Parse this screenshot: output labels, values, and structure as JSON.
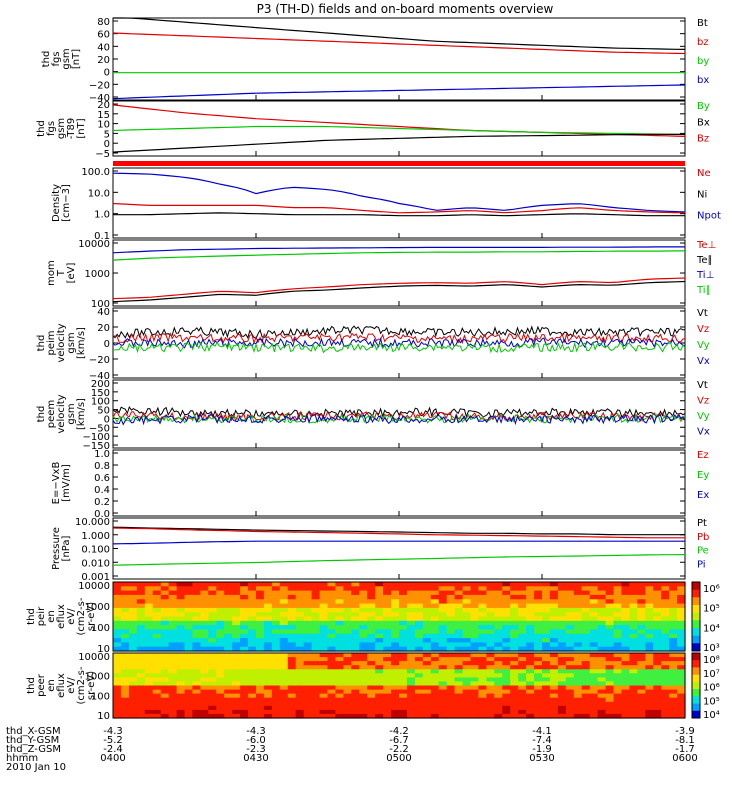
{
  "title": "P3 (TH-D) fields and on-board moments overview",
  "colors": {
    "black": "#000000",
    "red": "#e00000",
    "green": "#00c800",
    "blue": "#0000c8",
    "orange": "#ff0000"
  },
  "chart_data": [
    {
      "type": "line",
      "ylabel": [
        "thd",
        "fgs",
        "gsm",
        "[nT]"
      ],
      "yticks": [
        "80",
        "60",
        "40",
        "20",
        "0",
        "−20",
        "−40"
      ],
      "ylim": [
        -40,
        80
      ],
      "legend": [
        {
          "name": "Bt",
          "color": "#000000"
        },
        {
          "name": "bz",
          "color": "#e00000"
        },
        {
          "name": "by",
          "color": "#00c800"
        },
        {
          "name": "bx",
          "color": "#0000c8"
        }
      ],
      "series": [
        {
          "name": "Bt",
          "color": "#000000",
          "values": [
            82,
            78,
            74,
            70,
            66,
            62,
            58,
            54,
            50,
            46,
            44,
            42,
            40,
            38,
            36,
            35,
            34
          ]
        },
        {
          "name": "bz",
          "color": "#e00000",
          "values": [
            58,
            56,
            54,
            52,
            50,
            48,
            46,
            44,
            42,
            40,
            38,
            36,
            34,
            32,
            30,
            29,
            28
          ]
        },
        {
          "name": "by",
          "color": "#00c800",
          "values": [
            0,
            0,
            0,
            0,
            0,
            0,
            0,
            0,
            0,
            0,
            0,
            0,
            0,
            0,
            0,
            0,
            0
          ]
        },
        {
          "name": "bx",
          "color": "#0000c8",
          "values": [
            -38,
            -36,
            -34,
            -32,
            -30,
            -29,
            -28,
            -27,
            -26,
            -25,
            -24,
            -23,
            -22,
            -21,
            -20,
            -19,
            -18
          ]
        }
      ]
    },
    {
      "type": "line",
      "ylabel": [
        "thd",
        "fgs",
        "gsm",
        "-T89",
        "[nT]"
      ],
      "yticks": [
        "20",
        "15",
        "10",
        "5",
        "0",
        "−5"
      ],
      "ylim": [
        -8,
        20
      ],
      "legend": [
        {
          "name": "By",
          "color": "#00c800"
        },
        {
          "name": "Bx",
          "color": "#000000"
        },
        {
          "name": "Bz",
          "color": "#e00000"
        }
      ],
      "series": [
        {
          "name": "Bz",
          "color": "#e00000",
          "values": [
            18,
            16,
            14,
            12.5,
            11,
            10,
            9,
            8,
            7,
            6,
            5,
            4.5,
            4,
            3.5,
            3,
            2.5,
            2
          ]
        },
        {
          "name": "By",
          "color": "#00c800",
          "values": [
            5,
            5.5,
            6,
            6.5,
            7,
            7,
            7,
            6.5,
            6,
            5.5,
            5,
            4.5,
            4,
            3.8,
            3.5,
            3.2,
            3
          ]
        },
        {
          "name": "Bx",
          "color": "#000000",
          "values": [
            -6,
            -5,
            -4,
            -3,
            -2,
            -1,
            0,
            0.5,
            1,
            1.5,
            2,
            2.2,
            2.4,
            2.6,
            2.8,
            3,
            3
          ]
        }
      ]
    },
    {
      "type": "line",
      "log": true,
      "ylabel": [
        "Density",
        "[cm−3]"
      ],
      "yticks": [
        "100.0",
        "10.0",
        "1.0",
        "0.1"
      ],
      "ylim": [
        0.1,
        100
      ],
      "legend": [
        {
          "name": "Ne",
          "color": "#e00000"
        },
        {
          "name": "Ni",
          "color": "#000000"
        },
        {
          "name": "Npot",
          "color": "#0000c8"
        }
      ],
      "series": [
        {
          "name": "Npot",
          "color": "#0000c8",
          "values": [
            60,
            55,
            40,
            20,
            8,
            15,
            12,
            6,
            3,
            1.5,
            2,
            1.5,
            2.5,
            3,
            2,
            1.5,
            1.3
          ]
        },
        {
          "name": "Ne",
          "color": "#e00000",
          "values": [
            3,
            2.5,
            2.5,
            2.5,
            2.5,
            2,
            2,
            1.5,
            1.2,
            1.3,
            1.5,
            1.2,
            1.5,
            2,
            1.5,
            1.3,
            1.2
          ]
        },
        {
          "name": "Ni",
          "color": "#000000",
          "values": [
            1,
            1,
            1.1,
            1.2,
            1.1,
            1,
            1,
            1,
            0.9,
            0.9,
            1,
            0.9,
            1,
            1.1,
            1,
            0.9,
            0.9
          ]
        }
      ]
    },
    {
      "type": "line",
      "log": true,
      "ylabel": [
        "mom",
        "T",
        "[eV]"
      ],
      "yticks": [
        "10000",
        "1000",
        "100"
      ],
      "ylim": [
        20,
        10000
      ],
      "legend": [
        {
          "name": "Te⊥",
          "color": "#e00000"
        },
        {
          "name": "Te∥",
          "color": "#000000"
        },
        {
          "name": "Ti⊥",
          "color": "#0000c8"
        },
        {
          "name": "Ti∥",
          "color": "#00c800"
        }
      ],
      "series": [
        {
          "name": "Ti⊥",
          "color": "#0000c8",
          "values": [
            3000,
            3500,
            4000,
            4200,
            4500,
            4600,
            4700,
            4800,
            4900,
            5000,
            5000,
            5000,
            5000,
            5100,
            5100,
            5200,
            5200
          ]
        },
        {
          "name": "Ti∥",
          "color": "#00c800",
          "values": [
            1500,
            1800,
            2000,
            2200,
            2400,
            2600,
            2800,
            3000,
            3100,
            3200,
            3200,
            3300,
            3300,
            3400,
            3500,
            3500,
            3600
          ]
        },
        {
          "name": "Te⊥",
          "color": "#e00000",
          "values": [
            40,
            45,
            60,
            80,
            70,
            100,
            120,
            150,
            170,
            180,
            170,
            200,
            150,
            200,
            180,
            250,
            280
          ]
        },
        {
          "name": "Te∥",
          "color": "#000000",
          "values": [
            30,
            35,
            45,
            60,
            55,
            80,
            90,
            110,
            130,
            140,
            130,
            150,
            120,
            150,
            140,
            180,
            200
          ]
        }
      ]
    },
    {
      "type": "line",
      "noisy": true,
      "ylabel": [
        "thd",
        "peim",
        "velocity",
        "gsm",
        "[km/s]"
      ],
      "yticks": [
        "40",
        "20",
        "0",
        "−20",
        "−40"
      ],
      "ylim": [
        -40,
        40
      ],
      "legend": [
        {
          "name": "Vt",
          "color": "#000000"
        },
        {
          "name": "Vz",
          "color": "#e00000"
        },
        {
          "name": "Vy",
          "color": "#00c800"
        },
        {
          "name": "Vx",
          "color": "#0000c8"
        }
      ],
      "series": [
        {
          "name": "Vt",
          "color": "#000000",
          "values": [
            10,
            12,
            14,
            12,
            10,
            12,
            14,
            15,
            14,
            12,
            12,
            13,
            14,
            12,
            12,
            13,
            12
          ]
        },
        {
          "name": "Vz",
          "color": "#e00000",
          "values": [
            5,
            6,
            6,
            5,
            5,
            6,
            7,
            7,
            6,
            5,
            5,
            6,
            6,
            5,
            5,
            6,
            5
          ]
        },
        {
          "name": "Vx",
          "color": "#0000c8",
          "values": [
            0,
            0,
            -1,
            0,
            0,
            0,
            1,
            0,
            0,
            0,
            0,
            0,
            1,
            0,
            0,
            0,
            0
          ]
        },
        {
          "name": "Vy",
          "color": "#00c800",
          "values": [
            -5,
            -6,
            -5,
            -4,
            -5,
            -6,
            -6,
            -5,
            -5,
            -4,
            -5,
            -6,
            -5,
            -5,
            -4,
            -5,
            -5
          ]
        }
      ]
    },
    {
      "type": "line",
      "noisy": true,
      "ylabel": [
        "thd",
        "peem",
        "velocity",
        "gsm",
        "[km/s]"
      ],
      "yticks": [
        "200",
        "150",
        "100",
        "50",
        "0",
        "−50",
        "−100",
        "−150"
      ],
      "ylim": [
        -150,
        200
      ],
      "legend": [
        {
          "name": "Vt",
          "color": "#000000"
        },
        {
          "name": "Vz",
          "color": "#e00000"
        },
        {
          "name": "Vy",
          "color": "#00c800"
        },
        {
          "name": "Vx",
          "color": "#0000c8"
        }
      ],
      "series": [
        {
          "name": "Vt",
          "color": "#000000",
          "values": [
            50,
            40,
            35,
            30,
            25,
            25,
            30,
            30,
            35,
            35,
            30,
            30,
            35,
            35,
            30,
            30,
            30
          ]
        },
        {
          "name": "Vz",
          "color": "#e00000",
          "values": [
            20,
            15,
            10,
            10,
            10,
            10,
            15,
            15,
            15,
            15,
            10,
            10,
            15,
            15,
            10,
            10,
            10
          ]
        },
        {
          "name": "Vy",
          "color": "#00c800",
          "values": [
            0,
            0,
            0,
            0,
            0,
            0,
            0,
            0,
            0,
            0,
            0,
            0,
            0,
            0,
            0,
            0,
            0
          ]
        },
        {
          "name": "Vx",
          "color": "#0000c8",
          "values": [
            -10,
            -5,
            0,
            0,
            0,
            0,
            0,
            -5,
            -5,
            0,
            0,
            -5,
            0,
            -5,
            0,
            0,
            0
          ]
        }
      ]
    },
    {
      "type": "line",
      "ylabel": [
        "E=−VxB",
        "[mV/m]"
      ],
      "yticks": [
        "1.0",
        "0.8",
        "0.6",
        "0.4",
        "0.2",
        "0.0"
      ],
      "ylim": [
        0,
        1
      ],
      "legend": [
        {
          "name": "Ez",
          "color": "#e00000"
        },
        {
          "name": "Ey",
          "color": "#00c800"
        },
        {
          "name": "Ex",
          "color": "#0000c8"
        }
      ],
      "series": []
    },
    {
      "type": "line",
      "log": true,
      "ylabel": [
        "Pressure",
        "[nPa]"
      ],
      "yticks": [
        "10.000",
        "1.000",
        "0.100",
        "0.010",
        "0.001"
      ],
      "ylim": [
        0.001,
        10
      ],
      "legend": [
        {
          "name": "Pt",
          "color": "#000000"
        },
        {
          "name": "Pb",
          "color": "#e00000"
        },
        {
          "name": "Pe",
          "color": "#00c800"
        },
        {
          "name": "Pi",
          "color": "#0000c8"
        }
      ],
      "series": [
        {
          "name": "Pt",
          "color": "#000000",
          "values": [
            2.5,
            2.2,
            2,
            1.8,
            1.6,
            1.5,
            1.4,
            1.3,
            1.2,
            1.1,
            1,
            1,
            0.9,
            0.9,
            0.8,
            0.8,
            0.8
          ]
        },
        {
          "name": "Pb",
          "color": "#e00000",
          "values": [
            2.2,
            2,
            1.7,
            1.5,
            1.3,
            1.2,
            1.1,
            1,
            0.9,
            0.8,
            0.75,
            0.7,
            0.65,
            0.6,
            0.55,
            0.5,
            0.5
          ]
        },
        {
          "name": "Pi",
          "color": "#0000c8",
          "values": [
            0.2,
            0.22,
            0.25,
            0.28,
            0.3,
            0.3,
            0.3,
            0.3,
            0.3,
            0.3,
            0.3,
            0.3,
            0.3,
            0.3,
            0.3,
            0.3,
            0.3
          ]
        },
        {
          "name": "Pe",
          "color": "#00c800",
          "values": [
            0.008,
            0.009,
            0.01,
            0.011,
            0.012,
            0.014,
            0.016,
            0.018,
            0.02,
            0.022,
            0.025,
            0.028,
            0.03,
            0.032,
            0.035,
            0.038,
            0.04
          ]
        }
      ]
    },
    {
      "type": "heatmap",
      "variant": "ion",
      "ylabel": [
        "thd",
        "peir",
        "en",
        "eflux",
        "eV/",
        "(cm2-s-",
        "sr-eV)"
      ],
      "yticks": [
        "10000",
        "1000",
        "100",
        "10"
      ],
      "colorbar": [
        "10⁶",
        "10⁵",
        "10⁴",
        "10³"
      ]
    },
    {
      "type": "heatmap",
      "variant": "electron",
      "ylabel": [
        "thd",
        "peer",
        "en",
        "eflux",
        "eV/",
        "(cm2-s-",
        "sr-eV)"
      ],
      "yticks": [
        "10000",
        "1000",
        "100",
        "10"
      ],
      "colorbar": [
        "10⁸",
        "10⁷",
        "10⁶",
        "10⁵",
        "10⁴"
      ]
    }
  ],
  "xaxis": {
    "rows": [
      {
        "label": "thd_X-GSM",
        "values": [
          "-4.3",
          "-4.3",
          "-4.2",
          "-4.1",
          "-3.9"
        ]
      },
      {
        "label": "thd_Y-GSM",
        "values": [
          "-5.2",
          "-6.0",
          "-6.7",
          "-7.4",
          "-8.1"
        ]
      },
      {
        "label": "thd_Z-GSM",
        "values": [
          "-2.4",
          "-2.3",
          "-2.2",
          "-1.9",
          "-1.7"
        ]
      },
      {
        "label": "hhmm",
        "values": [
          "0400",
          "0430",
          "0500",
          "0530",
          "0600"
        ]
      }
    ],
    "date": "2010 Jan 10"
  }
}
